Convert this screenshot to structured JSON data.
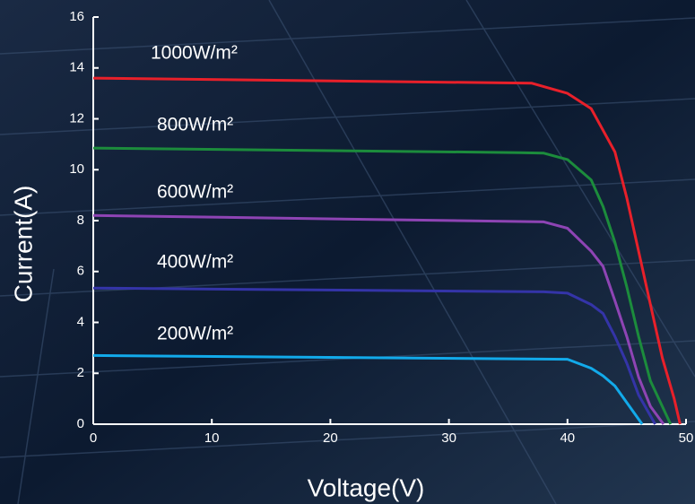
{
  "chart_data": {
    "type": "line",
    "x_label": "Voltage(V)",
    "y_label": "Current(A)",
    "xlim": [
      0,
      50
    ],
    "ylim": [
      0,
      16
    ],
    "xticks": [
      0,
      10,
      20,
      30,
      40,
      50
    ],
    "yticks": [
      0,
      2,
      4,
      6,
      8,
      10,
      12,
      14,
      16
    ],
    "series": [
      {
        "name": "1000W/m²",
        "color": "#e8202a",
        "x": [
          0,
          37,
          40,
          42,
          44,
          45,
          46,
          47,
          48,
          49,
          49.5
        ],
        "values": [
          13.6,
          13.4,
          13.0,
          12.4,
          10.7,
          8.9,
          6.8,
          4.7,
          2.6,
          1.0,
          0
        ]
      },
      {
        "name": "800W/m²",
        "color": "#1c8c3c",
        "x": [
          0,
          36,
          38,
          40,
          42,
          43,
          44,
          45,
          46,
          47,
          48.7
        ],
        "values": [
          10.85,
          10.67,
          10.65,
          10.4,
          9.6,
          8.55,
          7.15,
          5.4,
          3.45,
          1.7,
          0
        ]
      },
      {
        "name": "600W/m²",
        "color": "#8e44b4",
        "x": [
          0,
          38,
          40,
          42,
          43,
          44,
          45,
          46,
          47,
          48.1
        ],
        "values": [
          8.2,
          7.95,
          7.7,
          6.8,
          6.2,
          4.85,
          3.45,
          1.85,
          0.7,
          0
        ]
      },
      {
        "name": "400W/m²",
        "color": "#3434a8",
        "x": [
          0,
          38,
          40,
          42,
          43,
          44,
          45,
          46,
          47.4
        ],
        "values": [
          5.35,
          5.2,
          5.15,
          4.7,
          4.35,
          3.45,
          2.4,
          1.15,
          0
        ]
      },
      {
        "name": "200W/m²",
        "color": "#12aaea",
        "x": [
          0,
          40,
          42,
          43,
          44,
          45,
          46.3
        ],
        "values": [
          2.7,
          2.55,
          2.2,
          1.9,
          1.5,
          0.85,
          0
        ]
      }
    ]
  }
}
